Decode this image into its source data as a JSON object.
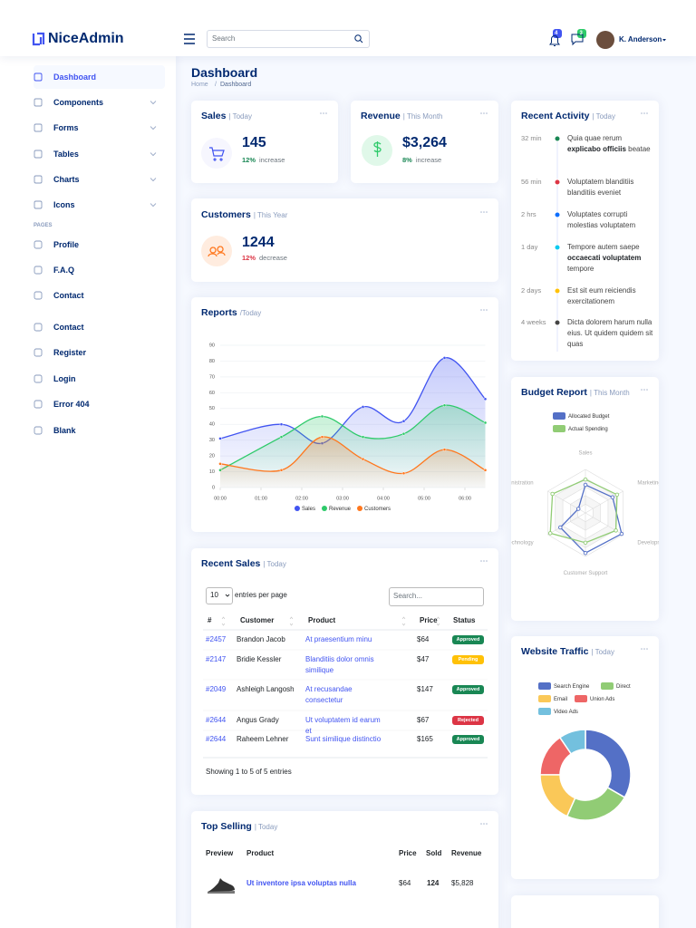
{
  "header": {
    "logo": "NiceAdmin",
    "search": "Search",
    "notification_count": "4",
    "message_count": "3",
    "user": "K. Anderson"
  },
  "sidebar": {
    "menu": [
      "Dashboard",
      "Components",
      "Forms",
      "Tables",
      "Charts",
      "Icons"
    ],
    "pages_heading": "PAGES",
    "pages": [
      "Profile",
      "F.A.Q",
      "Contact",
      "Contact",
      "Register",
      "Login",
      "Error 404",
      "Blank"
    ]
  },
  "page": {
    "title": "Dashboard",
    "breadcrumb": [
      "Home",
      "Dashboard"
    ],
    "breadcrumb_separator": "/"
  },
  "sales": {
    "title": "Sales",
    "filter": "| Today",
    "value": "145",
    "change": "12%",
    "change_text": "increase"
  },
  "revenue": {
    "title": "Revenue",
    "filter": "| This Month",
    "value": "$3,264",
    "change": "8%",
    "change_text": "increase"
  },
  "customers": {
    "title": "Customers",
    "filter": "| This Year",
    "value": "1244",
    "change": "12%",
    "change_text": "decrease"
  },
  "reports": {
    "title": "Reports",
    "filter": "/Today",
    "chart_data": {
      "type": "line",
      "x": [
        0,
        1.5,
        2.5,
        3.5,
        4.5,
        5.5,
        6.5
      ],
      "xlim": [
        0,
        6.5
      ],
      "xticks": [
        {
          "value": 0,
          "label": "00:00"
        },
        {
          "value": 1,
          "label": "01:00"
        },
        {
          "value": 2,
          "label": "02:00"
        },
        {
          "value": 3,
          "label": "03:00"
        },
        {
          "value": 4,
          "label": "04:00"
        },
        {
          "value": 5,
          "label": "05:00"
        },
        {
          "value": 6,
          "label": "06:00"
        }
      ],
      "ylim": [
        0,
        90
      ],
      "yticks": [
        0,
        10,
        20,
        30,
        40,
        50,
        60,
        70,
        80,
        90
      ],
      "grid": true,
      "series": [
        {
          "name": "Sales",
          "color": "#4154f1",
          "values": [
            31,
            40,
            28,
            51,
            42,
            82,
            56
          ]
        },
        {
          "name": "Revenue",
          "color": "#2eca6a",
          "values": [
            11,
            32,
            45,
            32,
            34,
            52,
            41
          ]
        },
        {
          "name": "Customers",
          "color": "#ff771d",
          "values": [
            15,
            11,
            32,
            18,
            9,
            24,
            11
          ]
        }
      ]
    }
  },
  "recent_sales": {
    "title": "Recent Sales",
    "filter": "| Today",
    "page_size": "10",
    "page_size_text": "entries per page",
    "search": "Search...",
    "columns": [
      "#",
      "Customer",
      "Product",
      "Price",
      "Status"
    ],
    "rows": [
      {
        "id": "#2457",
        "customer": "Brandon Jacob",
        "product": "At praesentium minu",
        "price": "$64",
        "status": "Approved",
        "status_color": "#198754"
      },
      {
        "id": "#2147",
        "customer": "Bridie Kessler",
        "product": "Blanditiis dolor omnis similique",
        "price": "$47",
        "status": "Pending",
        "status_color": "#ffc107"
      },
      {
        "id": "#2049",
        "customer": "Ashleigh Langosh",
        "product": "At recusandae consectetur",
        "price": "$147",
        "status": "Approved",
        "status_color": "#198754"
      },
      {
        "id": "#2644",
        "customer": "Angus Grady",
        "product": "Ut voluptatem id earum et",
        "price": "$67",
        "status": "Rejected",
        "status_color": "#dc3545"
      },
      {
        "id": "#2644",
        "customer": "Raheem Lehner",
        "product": "Sunt similique distinctio",
        "price": "$165",
        "status": "Approved",
        "status_color": "#198754"
      }
    ],
    "footer": "Showing 1 to 5 of 5 entries"
  },
  "top_selling": {
    "title": "Top Selling",
    "filter": "| Today",
    "columns": [
      "Preview",
      "Product",
      "Price",
      "Sold",
      "Revenue"
    ],
    "rows": [
      {
        "product": "Ut inventore ipsa voluptas nulla",
        "price": "$64",
        "sold": "124",
        "revenue": "$5,828"
      }
    ]
  },
  "recent_activity": {
    "title": "Recent Activity",
    "filter": "| Today",
    "items": [
      {
        "time": "32 min",
        "color": "#198754",
        "text": [
          "Quia quae rerum ",
          "explicabo officiis",
          " beatae"
        ]
      },
      {
        "time": "56 min",
        "color": "#dc3545",
        "text": [
          "Voluptatem blanditiis blanditiis eveniet"
        ]
      },
      {
        "time": "2 hrs",
        "color": "#0d6efd",
        "text": [
          "Voluptates corrupti molestias voluptatem"
        ]
      },
      {
        "time": "1 day",
        "color": "#0dcaf0",
        "text": [
          "Tempore autem saepe ",
          "occaecati voluptatem",
          " tempore"
        ]
      },
      {
        "time": "2 days",
        "color": "#ffc107",
        "text": [
          "Est sit eum reiciendis exercitationem"
        ]
      },
      {
        "time": "4 weeks",
        "color": "#444444",
        "text": [
          "Dicta dolorem harum nulla eius. Ut quidem quidem sit quas"
        ]
      }
    ]
  },
  "budget": {
    "title": "Budget Report",
    "filter": "| This Month",
    "chart_data": {
      "type": "radar",
      "indicators": [
        {
          "name": "Sales",
          "max": 6500
        },
        {
          "name": "Administration",
          "max": 16000
        },
        {
          "name": "Information Technology",
          "max": 30000
        },
        {
          "name": "Customer Support",
          "max": 38000
        },
        {
          "name": "Development",
          "max": 52000
        },
        {
          "name": "Marketing",
          "max": 25000
        }
      ],
      "series": [
        {
          "name": "Allocated Budget",
          "color": "#5470c6",
          "values": [
            4200,
            3000,
            20000,
            35000,
            50000,
            18000
          ]
        },
        {
          "name": "Actual Spending",
          "color": "#91cc75",
          "values": [
            5000,
            14000,
            28000,
            26000,
            42000,
            21000
          ]
        }
      ]
    }
  },
  "traffic": {
    "title": "Website Traffic",
    "filter": "| Today",
    "chart_data": {
      "type": "pie",
      "categories": [
        "Search Engine",
        "Direct",
        "Email",
        "Union Ads",
        "Video Ads"
      ],
      "values": [
        1048,
        735,
        580,
        484,
        300
      ],
      "colors": [
        "#5470c6",
        "#91cc75",
        "#fac858",
        "#ee6666",
        "#73c0de"
      ]
    }
  }
}
